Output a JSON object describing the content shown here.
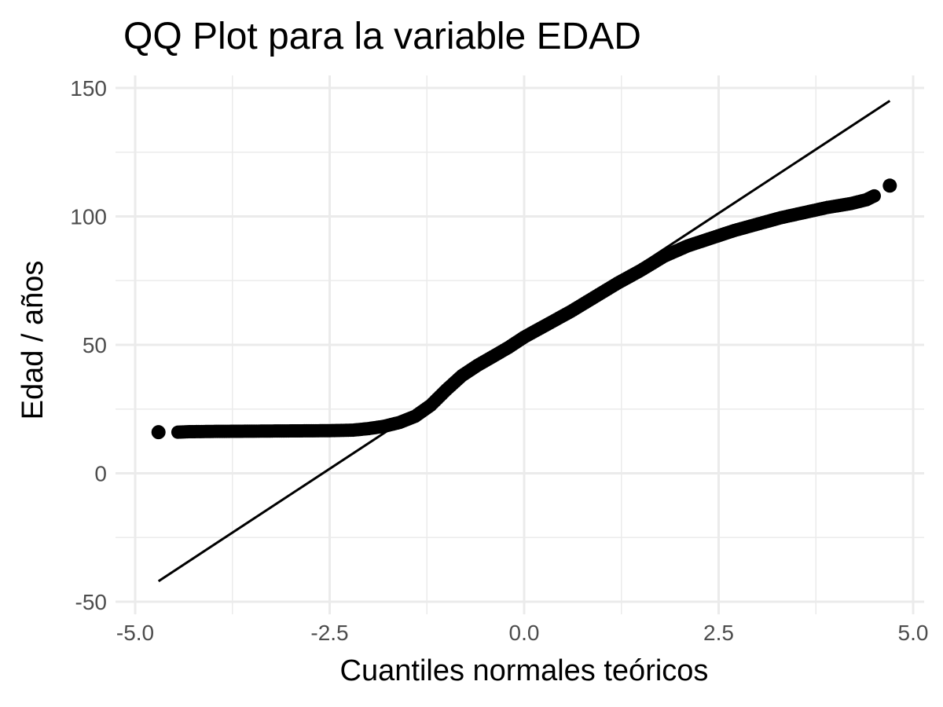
{
  "chart_data": {
    "type": "scatter",
    "title": "QQ Plot para la variable EDAD",
    "xlabel": "Cuantiles normales teóricos",
    "ylabel": "Edad / años",
    "xlim": [
      -5.0,
      5.0
    ],
    "ylim": [
      -50,
      150
    ],
    "x_ticks": [
      -5.0,
      -2.5,
      0.0,
      2.5,
      5.0
    ],
    "x_tick_labels": [
      "-5.0",
      "-2.5",
      "0.0",
      "2.5",
      "5.0"
    ],
    "y_ticks": [
      -50,
      0,
      50,
      100,
      150
    ],
    "y_tick_labels": [
      "-50",
      "0",
      "50",
      "100",
      "150"
    ],
    "grid": true,
    "point_color": "#000000",
    "line_color": "#000000",
    "reference_line": {
      "x": [
        -4.7,
        4.7
      ],
      "y": [
        -42,
        145
      ]
    },
    "qq_curve": {
      "x": [
        -4.7,
        -4.45,
        -4.3,
        -4.0,
        -3.5,
        -3.0,
        -2.5,
        -2.2,
        -2.0,
        -1.8,
        -1.6,
        -1.4,
        -1.2,
        -1.0,
        -0.8,
        -0.6,
        -0.4,
        -0.2,
        0.0,
        0.3,
        0.6,
        0.9,
        1.2,
        1.5,
        1.8,
        2.1,
        2.4,
        2.7,
        3.0,
        3.3,
        3.6,
        3.9,
        4.2,
        4.4,
        4.5,
        4.7
      ],
      "y": [
        16,
        16,
        16.2,
        16.3,
        16.4,
        16.5,
        16.6,
        16.8,
        17.4,
        18.3,
        19.8,
        22.2,
        26.5,
        32.5,
        38,
        42,
        45.5,
        49,
        53,
        58,
        63,
        68.5,
        74,
        79,
        84.5,
        88.5,
        91.5,
        94.5,
        97,
        99.5,
        101.5,
        103.5,
        105,
        106.5,
        108,
        112
      ]
    }
  }
}
